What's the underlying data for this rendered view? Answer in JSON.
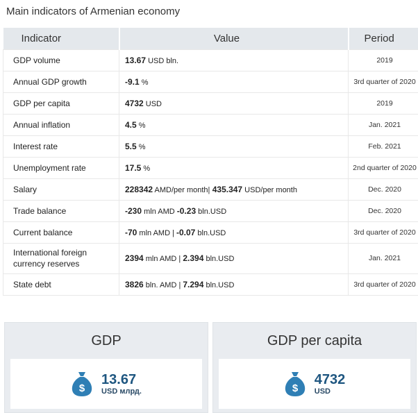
{
  "title": "Main indicators of Armenian economy",
  "table": {
    "headers": [
      "Indicator",
      "Value",
      "Period"
    ],
    "rows": [
      {
        "indicator": "GDP volume",
        "value": "13.67",
        "unit": " USD bln.",
        "period": "2019"
      },
      {
        "indicator": "Annual GDP growth",
        "value": "-9.1",
        "unit": " %",
        "period": "3rd quarter of 2020"
      },
      {
        "indicator": "GDP per capita",
        "value": "4732",
        "unit": " USD",
        "period": "2019"
      },
      {
        "indicator": "Annual inflation",
        "value": "4.5",
        "unit": " %",
        "period": "Jan. 2021"
      },
      {
        "indicator": "Interest rate",
        "value": "5.5",
        "unit": " %",
        "period": "Feb. 2021"
      },
      {
        "indicator": "Unemployment rate",
        "value": "17.5",
        "unit": " %",
        "period": "2nd quarter of 2020"
      },
      {
        "indicator": "Salary",
        "value": "228342",
        "unit": " AMD/per month|",
        "value2": " 435.347",
        "unit2": " USD/per month",
        "period": "Dec. 2020"
      },
      {
        "indicator": "Trade balance",
        "value": "-230",
        "unit": " mln AMD ",
        "value2": " -0.23",
        "unit2": " bln.USD",
        "period": "Dec. 2020"
      },
      {
        "indicator": "Current balance",
        "value": "-70",
        "unit": " mln AMD | ",
        "value2": "-0.07",
        "unit2": " bln.USD",
        "period": "3rd quarter of 2020"
      },
      {
        "indicator": "International foreign currency reserves",
        "value": "2394",
        "unit": " mln AMD | ",
        "value2": "2.394",
        "unit2": " bln.USD",
        "period": "Jan. 2021"
      },
      {
        "indicator": "State debt",
        "value": "3826",
        "unit": " bln. AMD | ",
        "value2": "7.294",
        "unit2": " bln.USD",
        "period": "3rd quarter of 2020"
      }
    ]
  },
  "cards": [
    {
      "title": "GDP",
      "value": "13.67",
      "unit": "USD млрд."
    },
    {
      "title": "GDP per capita",
      "value": "4732",
      "unit": "USD"
    }
  ],
  "icons": {
    "money_bag": "money-bag-icon"
  },
  "colors": {
    "accent": "#1e5680",
    "icon": "#2f7fb5",
    "header_bg": "#e4e8ec"
  }
}
